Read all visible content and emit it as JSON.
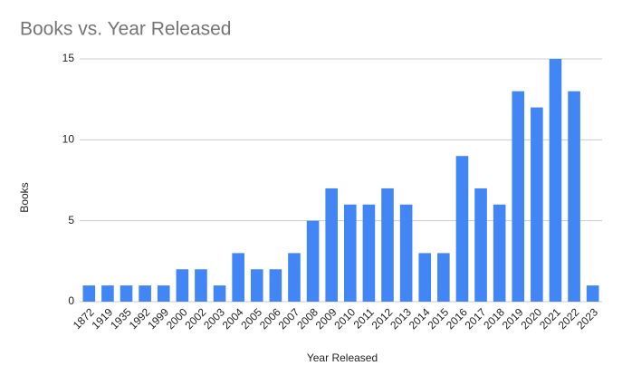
{
  "chart_data": {
    "type": "bar",
    "title": "Books vs. Year Released",
    "x_label": "Year Released",
    "y_label": "Books",
    "categories": [
      "1872",
      "1919",
      "1935",
      "1992",
      "1999",
      "2000",
      "2002",
      "2003",
      "2004",
      "2005",
      "2006",
      "2007",
      "2008",
      "2009",
      "2010",
      "2011",
      "2012",
      "2013",
      "2014",
      "2015",
      "2016",
      "2017",
      "2018",
      "2019",
      "2020",
      "2021",
      "2022",
      "2023"
    ],
    "values": [
      1,
      1,
      1,
      1,
      1,
      2,
      2,
      1,
      3,
      2,
      2,
      3,
      5,
      7,
      6,
      6,
      7,
      6,
      3,
      3,
      9,
      7,
      6,
      13,
      12,
      15,
      13,
      1
    ],
    "color": "#4285f4",
    "ylim": [
      0,
      15
    ],
    "yticks": [
      0,
      5,
      10,
      15
    ],
    "grid": true
  }
}
